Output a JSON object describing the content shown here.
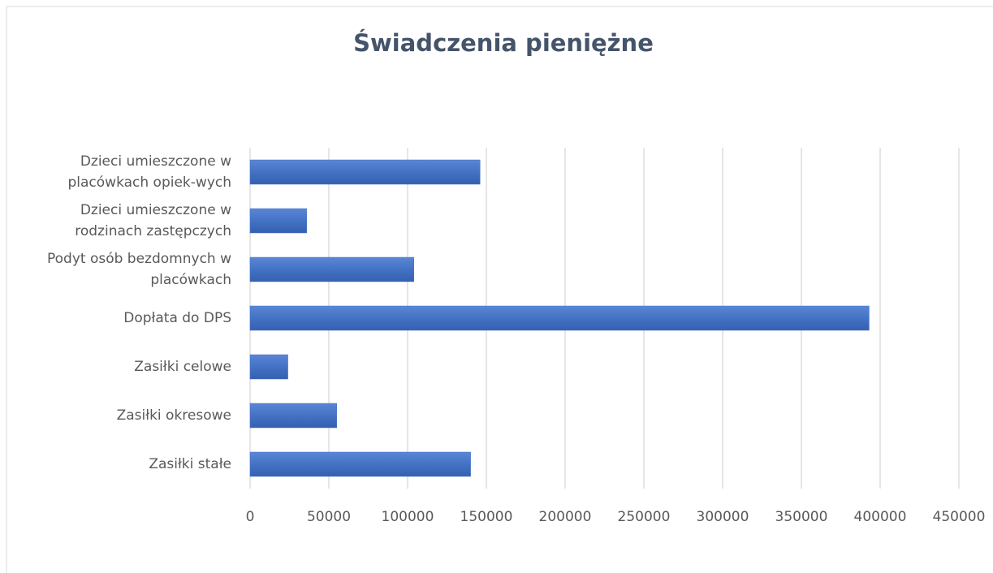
{
  "chart_data": {
    "type": "bar",
    "orientation": "horizontal",
    "title": "Świadczenia pieniężne",
    "categories": [
      "Dzieci umieszczone w\nplacówkach opiek-wych",
      "Dzieci umieszczone w\nrodzinach zastępczych",
      "Podyt osób bezdomnych w\nplacówkach",
      "Dopłata do DPS",
      "Zasiłki celowe",
      "Zasiłki okresowe",
      "Zasiłki stałe"
    ],
    "values": [
      146000,
      36000,
      104000,
      393000,
      24000,
      55000,
      140000
    ],
    "color": "#4472c4",
    "xlim": [
      0,
      450000
    ],
    "xticks": [
      0,
      50000,
      100000,
      150000,
      200000,
      250000,
      300000,
      350000,
      400000,
      450000
    ],
    "grid": true
  }
}
